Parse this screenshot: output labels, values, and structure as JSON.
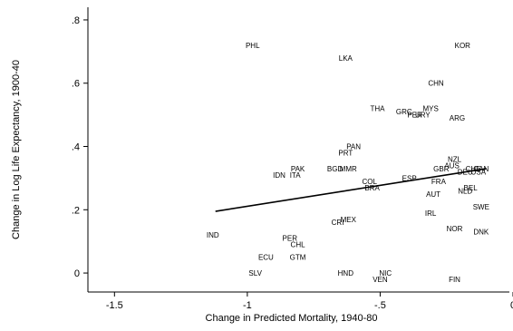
{
  "chart_data": {
    "type": "scatter",
    "title": "",
    "xlabel": "Change in Predicted Mortality, 1940-80",
    "ylabel": "Change in Log Life Expectancy, 1900-40",
    "xlim": [
      -1.6,
      0
    ],
    "ylim": [
      -0.06,
      0.84
    ],
    "xticks": [
      -1.5,
      -1,
      -0.5,
      0
    ],
    "xtick_labels": [
      "-1.5",
      "-1",
      "-.5",
      "0"
    ],
    "yticks": [
      0,
      0.2,
      0.4,
      0.6,
      0.8
    ],
    "ytick_labels": [
      "0",
      ".2",
      ".4",
      ".6",
      ".8"
    ],
    "grid": false,
    "marker": "country label",
    "points": [
      {
        "label": "PHL",
        "x": -0.98,
        "y": 0.72
      },
      {
        "label": "KOR",
        "x": -0.19,
        "y": 0.72
      },
      {
        "label": "LKA",
        "x": -0.63,
        "y": 0.68
      },
      {
        "label": "CHN",
        "x": -0.29,
        "y": 0.6
      },
      {
        "label": "THA",
        "x": -0.51,
        "y": 0.52
      },
      {
        "label": "GRC",
        "x": -0.41,
        "y": 0.51
      },
      {
        "label": "MYS",
        "x": -0.31,
        "y": 0.52
      },
      {
        "label": "PER",
        "x": -0.37,
        "y": 0.5
      },
      {
        "label": "URY",
        "x": -0.34,
        "y": 0.5
      },
      {
        "label": "ARG",
        "x": -0.21,
        "y": 0.49
      },
      {
        "label": "PAN",
        "x": -0.6,
        "y": 0.4
      },
      {
        "label": "PRT",
        "x": -0.63,
        "y": 0.38
      },
      {
        "label": "NZL",
        "x": -0.22,
        "y": 0.36
      },
      {
        "label": "AUS",
        "x": -0.23,
        "y": 0.34
      },
      {
        "label": "PAK",
        "x": -0.81,
        "y": 0.33
      },
      {
        "label": "BGD",
        "x": -0.67,
        "y": 0.33
      },
      {
        "label": "MMR",
        "x": -0.62,
        "y": 0.33
      },
      {
        "label": "GBR",
        "x": -0.27,
        "y": 0.33
      },
      {
        "label": "CHE",
        "x": -0.15,
        "y": 0.33
      },
      {
        "label": "DEU",
        "x": -0.18,
        "y": 0.32
      },
      {
        "label": "CAN",
        "x": -0.12,
        "y": 0.33
      },
      {
        "label": "USA",
        "x": -0.13,
        "y": 0.32
      },
      {
        "label": "IDN",
        "x": -0.88,
        "y": 0.31
      },
      {
        "label": "ITA",
        "x": -0.82,
        "y": 0.31
      },
      {
        "label": "ESP",
        "x": -0.39,
        "y": 0.3
      },
      {
        "label": "COL",
        "x": -0.54,
        "y": 0.29
      },
      {
        "label": "FRA",
        "x": -0.28,
        "y": 0.29
      },
      {
        "label": "BRA",
        "x": -0.53,
        "y": 0.27
      },
      {
        "label": "BEL",
        "x": -0.16,
        "y": 0.27
      },
      {
        "label": "NLD",
        "x": -0.18,
        "y": 0.26
      },
      {
        "label": "AUT",
        "x": -0.3,
        "y": 0.25
      },
      {
        "label": "SWE",
        "x": -0.12,
        "y": 0.21
      },
      {
        "label": "IRL",
        "x": -0.31,
        "y": 0.19
      },
      {
        "label": "MEX",
        "x": -0.62,
        "y": 0.17
      },
      {
        "label": "CRI",
        "x": -0.66,
        "y": 0.16
      },
      {
        "label": "NOR",
        "x": -0.22,
        "y": 0.14
      },
      {
        "label": "DNK",
        "x": -0.12,
        "y": 0.13
      },
      {
        "label": "IND",
        "x": -1.13,
        "y": 0.12
      },
      {
        "label": "PER",
        "x": -0.84,
        "y": 0.11
      },
      {
        "label": "CHL",
        "x": -0.81,
        "y": 0.09
      },
      {
        "label": "ECU",
        "x": -0.93,
        "y": 0.05
      },
      {
        "label": "GTM",
        "x": -0.81,
        "y": 0.05
      },
      {
        "label": "SLV",
        "x": -0.97,
        "y": 0.0
      },
      {
        "label": "HND",
        "x": -0.63,
        "y": 0.0
      },
      {
        "label": "NIC",
        "x": -0.48,
        "y": 0.0
      },
      {
        "label": "VEN",
        "x": -0.5,
        "y": -0.02
      },
      {
        "label": "FIN",
        "x": -0.22,
        "y": -0.02
      }
    ],
    "fit_line": {
      "x": [
        -1.12,
        -0.1
      ],
      "y": [
        0.195,
        0.33
      ]
    }
  },
  "colors": {
    "ink": "#000000",
    "background": "#ffffff"
  }
}
